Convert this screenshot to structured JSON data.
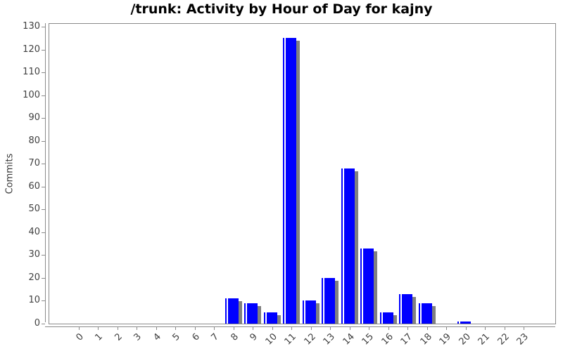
{
  "chart": {
    "title": "/trunk: Activity by Hour of Day for kajny",
    "ylabel": "Commits"
  },
  "chart_data": {
    "type": "bar",
    "title": "/trunk: Activity by Hour of Day for kajny",
    "xlabel": "",
    "ylabel": "Commits",
    "categories": [
      "0",
      "1",
      "2",
      "3",
      "4",
      "5",
      "6",
      "7",
      "8",
      "9",
      "10",
      "11",
      "12",
      "13",
      "14",
      "15",
      "16",
      "17",
      "18",
      "19",
      "20",
      "21",
      "22",
      "23"
    ],
    "values": [
      0,
      0,
      0,
      0,
      0,
      0,
      0,
      0,
      11,
      9,
      5,
      125,
      10,
      20,
      68,
      33,
      5,
      13,
      9,
      0,
      1,
      0,
      0,
      0
    ],
    "ylim": [
      0,
      130
    ],
    "ytick_step": 10,
    "grid": false,
    "legend": false,
    "layout": {
      "bar_color": "#0000ff",
      "shadow_color": "#808080",
      "axis_color": "#8a8a8a",
      "tick_label_color": "#404040",
      "title_color": "#000000",
      "background": "#ffffff"
    }
  }
}
